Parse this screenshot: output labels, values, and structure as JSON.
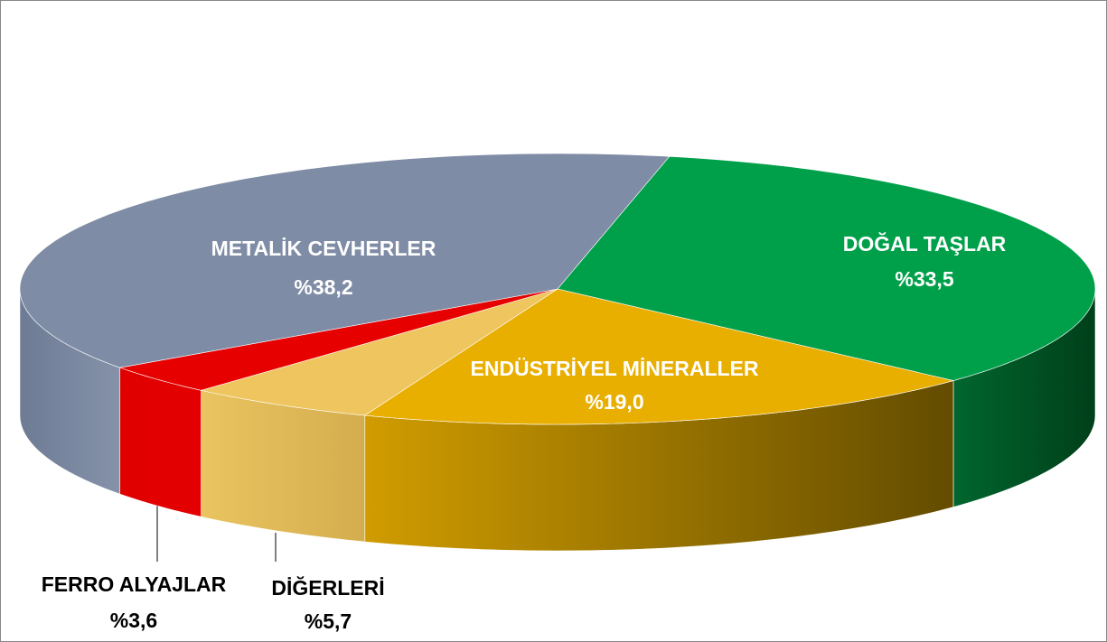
{
  "chart_data": {
    "type": "pie3d",
    "categories": [
      "DOĞAL TAŞLAR",
      "ENDÜSTRİYEL MİNERALLER",
      "DİĞERLERİ",
      "FERRO ALYAJLAR",
      "METALİK CEVHERLER"
    ],
    "values": [
      33.5,
      19.0,
      5.7,
      3.6,
      38.2
    ],
    "value_labels": [
      "%33,5",
      "%19,0",
      "%5,7",
      "%3,6",
      "%38,2"
    ],
    "colors": [
      "#00a04a",
      "#e8ae00",
      "#eec55e",
      "#e60000",
      "#7f8ca5"
    ]
  }
}
